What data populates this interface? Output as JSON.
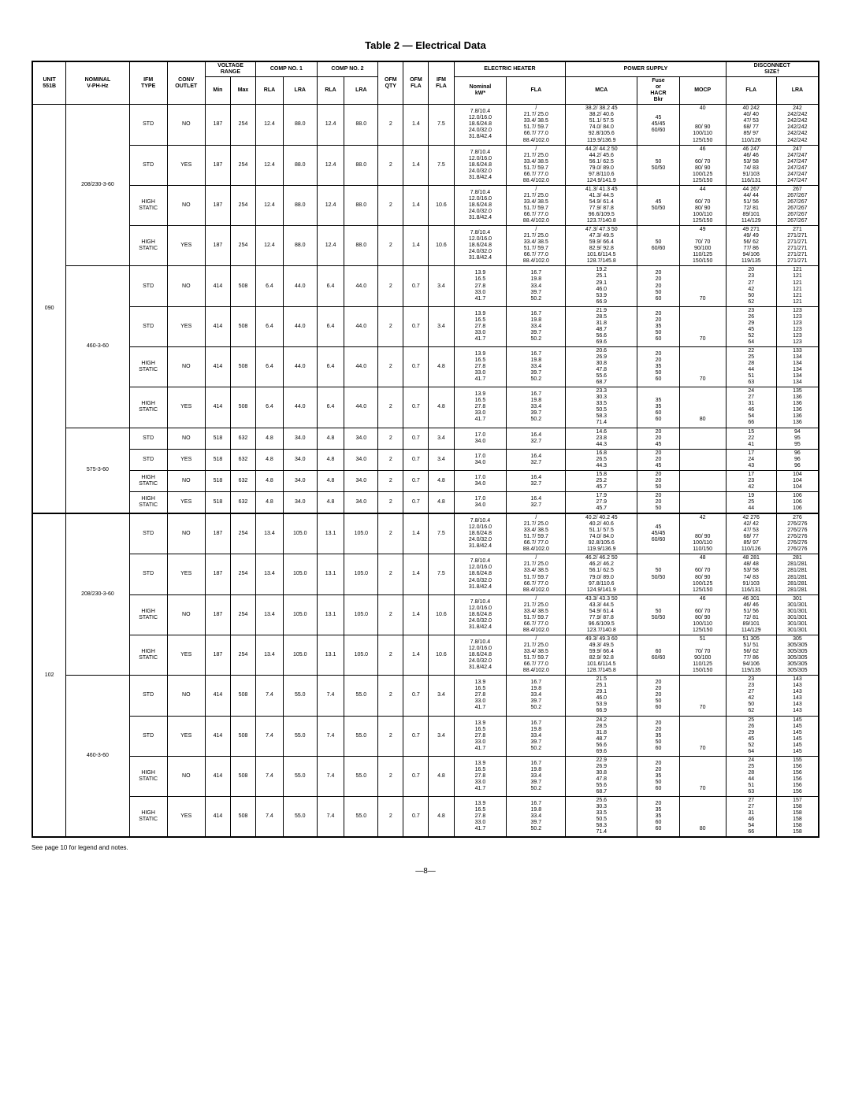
{
  "title": "Table 2 — Electrical Data",
  "footnote": "See page 10 for legend and notes.",
  "pagenum": "—8—",
  "header": {
    "unit": "UNIT\n551B",
    "nominal": "NOMINAL\nV-PH-Hz",
    "ifmtype": "IFM\nTYPE",
    "conv": "CONV\nOUTLET",
    "voltrange": "VOLTAGE\nRANGE",
    "min": "Min",
    "max": "Max",
    "comp1": "COMP NO. 1",
    "comp2": "COMP NO. 2",
    "rla": "RLA",
    "lra": "LRA",
    "ofmqty": "OFM\nQTY",
    "ofmfla": "OFM\nFLA",
    "ifmfla": "IFM\nFLA",
    "eheat": "ELECTRIC HEATER",
    "kw": "Nominal\nkW*",
    "fla": "FLA",
    "ps": "POWER SUPPLY",
    "mca": "MCA",
    "fuse": "Fuse\nor\nHACR\nBkr",
    "mocp": "MOCP",
    "disc": "DISCONNECT\nSIZE†",
    "dfla": "FLA",
    "dlra": "LRA"
  },
  "rows": [
    {
      "unit": "090",
      "volt": "208/230-3-60",
      "ifm": "STD",
      "conv": "NO",
      "min": "187",
      "max": "254",
      "r1": "12.4",
      "l1": "88.0",
      "r2": "12.4",
      "l2": "88.0",
      "qty": "2",
      "ofla": "1.4",
      "ifla": "7.5",
      "kw": "7.8/10.4\n12.0/16.0\n18.6/24.8\n24.0/32.0\n31.8/42.4",
      "fla": "/\n21.7/ 25.0\n33.4/ 38.5\n51.7/ 59.7\n66.7/ 77.0\n88.4/102.0",
      "mca": "38.2/ 38.2     45\n38.2/ 40.6\n51.1/ 57.5\n74.0/ 84.0\n92.8/105.6\n119.9/136.9",
      "fuse": "45\n45/45\n60/60",
      "mocp": "40\n\n\n80/ 90\n100/110\n125/150",
      "dfla": "40     242\n40/ 40\n47/ 53\n68/ 77\n85/ 97\n110/126",
      "dlra": "242\n242/242\n242/242\n242/242\n242/242\n242/242"
    },
    {
      "unit": "",
      "volt": "",
      "ifm": "STD",
      "conv": "YES",
      "min": "187",
      "max": "254",
      "r1": "12.4",
      "l1": "88.0",
      "r2": "12.4",
      "l2": "88.0",
      "qty": "2",
      "ofla": "1.4",
      "ifla": "7.5",
      "kw": "7.8/10.4\n12.0/16.0\n18.6/24.8\n24.0/32.0\n31.8/42.4",
      "fla": "/\n21.7/ 25.0\n33.4/ 38.5\n51.7/ 59.7\n66.7/ 77.0\n88.4/102.0",
      "mca": "44.2/ 44.2     50\n44.2/ 45.6\n56.1/ 62.5\n79.0/ 89.0\n97.8/110.6\n124.9/141.9",
      "fuse": "50\n50/50",
      "mocp": "46\n\n60/ 70\n80/ 90\n100/125\n125/150",
      "dfla": "46     247\n46/ 46\n53/ 58\n74/ 83\n91/103\n116/131",
      "dlra": "247\n247/247\n247/247\n247/247\n247/247\n247/247"
    },
    {
      "unit": "",
      "volt": "",
      "ifm": "HIGH\nSTATIC",
      "conv": "NO",
      "min": "187",
      "max": "254",
      "r1": "12.4",
      "l1": "88.0",
      "r2": "12.4",
      "l2": "88.0",
      "qty": "2",
      "ofla": "1.4",
      "ifla": "10.6",
      "kw": "7.8/10.4\n12.0/16.0\n18.6/24.8\n24.0/32.0\n31.8/42.4",
      "fla": "/\n21.7/ 25.0\n33.4/ 38.5\n51.7/ 59.7\n66.7/ 77.0\n88.4/102.0",
      "mca": "41.3/ 41.3     45\n41.3/ 44.5\n54.9/ 61.4\n77.9/ 87.8\n96.6/109.5\n123.7/140.8",
      "fuse": "45\n50/50",
      "mocp": "44\n\n60/ 70\n80/ 90\n100/110\n125/150",
      "dfla": "44     267\n44/ 44\n51/ 56\n72/ 81\n89/101\n114/129",
      "dlra": "267\n267/267\n267/267\n267/267\n267/267\n267/267"
    },
    {
      "unit": "",
      "volt": "",
      "ifm": "HIGH\nSTATIC",
      "conv": "YES",
      "min": "187",
      "max": "254",
      "r1": "12.4",
      "l1": "88.0",
      "r2": "12.4",
      "l2": "88.0",
      "qty": "2",
      "ofla": "1.4",
      "ifla": "10.6",
      "kw": "7.8/10.4\n12.0/16.0\n18.6/24.8\n24.0/32.0\n31.8/42.4",
      "fla": "/\n21.7/ 25.0\n33.4/ 38.5\n51.7/ 59.7\n66.7/ 77.0\n88.4/102.0",
      "mca": "47.3/ 47.3     50\n47.3/ 49.5\n59.9/ 66.4\n82.9/ 92.8\n101.6/114.5\n128.7/145.8",
      "fuse": "50\n60/60",
      "mocp": "49\n\n70/ 70\n90/100\n110/125\n150/150",
      "dfla": "49     271\n49/ 49\n56/ 62\n77/ 86\n94/106\n119/135",
      "dlra": "271\n271/271\n271/271\n271/271\n271/271\n271/271"
    },
    {
      "unit": "",
      "volt": "460-3-60",
      "ifm": "STD",
      "conv": "NO",
      "min": "414",
      "max": "508",
      "r1": "6.4",
      "l1": "44.0",
      "r2": "6.4",
      "l2": "44.0",
      "qty": "2",
      "ofla": "0.7",
      "ifla": "3.4",
      "kw": "13.9\n16.5\n27.8\n33.0\n41.7",
      "fla": "16.7\n19.8\n33.4\n39.7\n50.2",
      "mca": "19.2\n25.1\n29.1\n46.0\n53.9\n66.9",
      "fuse": "20\n20\n20\n50\n60",
      "mocp": "\n\n\n\n70",
      "dfla": "20\n23\n27\n42\n50\n62",
      "dlra": "121\n121\n121\n121\n121\n121"
    },
    {
      "unit": "",
      "volt": "",
      "ifm": "STD",
      "conv": "YES",
      "min": "414",
      "max": "508",
      "r1": "6.4",
      "l1": "44.0",
      "r2": "6.4",
      "l2": "44.0",
      "qty": "2",
      "ofla": "0.7",
      "ifla": "3.4",
      "kw": "13.9\n16.5\n27.8\n33.0\n41.7",
      "fla": "16.7\n19.8\n33.4\n39.7\n50.2",
      "mca": "21.9\n28.5\n31.8\n48.7\n56.6\n69.6",
      "fuse": "20\n20\n35\n50\n60",
      "mocp": "\n\n\n\n70",
      "dfla": "23\n26\n29\n45\n52\n64",
      "dlra": "123\n123\n123\n123\n123\n123"
    },
    {
      "unit": "",
      "volt": "",
      "ifm": "HIGH\nSTATIC",
      "conv": "NO",
      "min": "414",
      "max": "508",
      "r1": "6.4",
      "l1": "44.0",
      "r2": "6.4",
      "l2": "44.0",
      "qty": "2",
      "ofla": "0.7",
      "ifla": "4.8",
      "kw": "13.9\n16.5\n27.8\n33.0\n41.7",
      "fla": "16.7\n19.8\n33.4\n39.7\n50.2",
      "mca": "20.6\n26.9\n30.8\n47.8\n55.6\n68.7",
      "fuse": "20\n20\n35\n50\n60",
      "mocp": "\n\n\n\n70",
      "dfla": "22\n25\n28\n44\n51\n63",
      "dlra": "133\n134\n134\n134\n134\n134"
    },
    {
      "unit": "",
      "volt": "",
      "ifm": "HIGH\nSTATIC",
      "conv": "YES",
      "min": "414",
      "max": "508",
      "r1": "6.4",
      "l1": "44.0",
      "r2": "6.4",
      "l2": "44.0",
      "qty": "2",
      "ofla": "0.7",
      "ifla": "4.8",
      "kw": "13.9\n16.5\n27.8\n33.0\n41.7",
      "fla": "16.7\n19.8\n33.4\n39.7\n50.2",
      "mca": "23.3\n30.3\n33.5\n50.5\n58.3\n71.4",
      "fuse": "\n35\n35\n60\n60",
      "mocp": "\n\n\n\n80",
      "dfla": "24\n27\n31\n46\n54\n66",
      "dlra": "135\n136\n136\n136\n136\n136"
    },
    {
      "unit": "",
      "volt": "575-3-60",
      "ifm": "STD",
      "conv": "NO",
      "min": "518",
      "max": "632",
      "r1": "4.8",
      "l1": "34.0",
      "r2": "4.8",
      "l2": "34.0",
      "qty": "2",
      "ofla": "0.7",
      "ifla": "3.4",
      "kw": "17.0\n34.0",
      "fla": "16.4\n32.7",
      "mca": "14.6\n23.8\n44.3",
      "fuse": "20\n20\n45",
      "mocp": "",
      "dfla": "15\n22\n41",
      "dlra": "94\n95\n95"
    },
    {
      "unit": "",
      "volt": "",
      "ifm": "STD",
      "conv": "YES",
      "min": "518",
      "max": "632",
      "r1": "4.8",
      "l1": "34.0",
      "r2": "4.8",
      "l2": "34.0",
      "qty": "2",
      "ofla": "0.7",
      "ifla": "3.4",
      "kw": "17.0\n34.0",
      "fla": "16.4\n32.7",
      "mca": "16.8\n26.5\n44.3",
      "fuse": "20\n20\n45",
      "mocp": "",
      "dfla": "17\n24\n43",
      "dlra": "96\n96\n96"
    },
    {
      "unit": "",
      "volt": "",
      "ifm": "HIGH\nSTATIC",
      "conv": "NO",
      "min": "518",
      "max": "632",
      "r1": "4.8",
      "l1": "34.0",
      "r2": "4.8",
      "l2": "34.0",
      "qty": "2",
      "ofla": "0.7",
      "ifla": "4.8",
      "kw": "17.0\n34.0",
      "fla": "16.4\n32.7",
      "mca": "15.8\n25.2\n45.7",
      "fuse": "20\n20\n50",
      "mocp": "",
      "dfla": "17\n23\n42",
      "dlra": "104\n104\n104"
    },
    {
      "unit": "",
      "volt": "",
      "ifm": "HIGH\nSTATIC",
      "conv": "YES",
      "min": "518",
      "max": "632",
      "r1": "4.8",
      "l1": "34.0",
      "r2": "4.8",
      "l2": "34.0",
      "qty": "2",
      "ofla": "0.7",
      "ifla": "4.8",
      "kw": "17.0\n34.0",
      "fla": "16.4\n32.7",
      "mca": "17.9\n27.9\n45.7",
      "fuse": "20\n20\n50",
      "mocp": "",
      "dfla": "19\n25\n44",
      "dlra": "106\n106\n106"
    },
    {
      "unit": "102",
      "volt": "208/230-3-60",
      "ifm": "STD",
      "conv": "NO",
      "min": "187",
      "max": "254",
      "r1": "13.4",
      "l1": "105.0",
      "r2": "13.1",
      "l2": "105.0",
      "qty": "2",
      "ofla": "1.4",
      "ifla": "7.5",
      "kw": "7.8/10.4\n12.0/16.0\n18.6/24.8\n24.0/32.0\n31.8/42.4",
      "fla": "/\n21.7/ 25.0\n33.4/ 38.5\n51.7/ 59.7\n66.7/ 77.0\n88.4/102.0",
      "mca": "40.2/ 40.2     45\n40.2/ 40.6\n51.1/ 57.5\n74.0/ 84.0\n92.8/105.6\n119.9/136.9",
      "fuse": "45\n45/45\n60/60",
      "mocp": "42\n\n\n80/ 90\n100/110\n110/150",
      "dfla": "42     276\n42/ 42\n47/ 53\n68/ 77\n85/ 97\n110/126",
      "dlra": "276\n276/276\n276/276\n276/276\n276/276\n276/276"
    },
    {
      "unit": "",
      "volt": "",
      "ifm": "STD",
      "conv": "YES",
      "min": "187",
      "max": "254",
      "r1": "13.4",
      "l1": "105.0",
      "r2": "13.1",
      "l2": "105.0",
      "qty": "2",
      "ofla": "1.4",
      "ifla": "7.5",
      "kw": "7.8/10.4\n12.0/16.0\n18.6/24.8\n24.0/32.0\n31.8/42.4",
      "fla": "/\n21.7/ 25.0\n33.4/ 38.5\n51.7/ 59.7\n66.7/ 77.0\n88.4/102.0",
      "mca": "46.2/ 46.2     50\n46.2/ 46.2\n56.1/ 62.5\n79.0/ 89.0\n97.8/110.6\n124.9/141.9",
      "fuse": "50\n50/50",
      "mocp": "48\n\n60/ 70\n80/ 90\n100/125\n125/150",
      "dfla": "48     281\n48/ 48\n53/ 58\n74/ 83\n91/103\n116/131",
      "dlra": "281\n281/281\n281/281\n281/281\n281/281\n281/281"
    },
    {
      "unit": "",
      "volt": "",
      "ifm": "HIGH\nSTATIC",
      "conv": "NO",
      "min": "187",
      "max": "254",
      "r1": "13.4",
      "l1": "105.0",
      "r2": "13.1",
      "l2": "105.0",
      "qty": "2",
      "ofla": "1.4",
      "ifla": "10.6",
      "kw": "7.8/10.4\n12.0/16.0\n18.6/24.8\n24.0/32.0\n31.8/42.4",
      "fla": "/\n21.7/ 25.0\n33.4/ 38.5\n51.7/ 59.7\n66.7/ 77.0\n88.4/102.0",
      "mca": "43.3/ 43.3     50\n43.3/ 44.5\n54.9/ 61.4\n77.9/ 87.8\n96.6/109.5\n123.7/140.8",
      "fuse": "50\n50/50",
      "mocp": "46\n\n60/ 70\n80/ 90\n100/110\n125/150",
      "dfla": "46     301\n46/ 46\n51/ 56\n72/ 81\n89/101\n114/129",
      "dlra": "301\n301/301\n301/301\n301/301\n301/301\n301/301"
    },
    {
      "unit": "",
      "volt": "",
      "ifm": "HIGH\nSTATIC",
      "conv": "YES",
      "min": "187",
      "max": "254",
      "r1": "13.4",
      "l1": "105.0",
      "r2": "13.1",
      "l2": "105.0",
      "qty": "2",
      "ofla": "1.4",
      "ifla": "10.6",
      "kw": "7.8/10.4\n12.0/16.0\n18.6/24.8\n24.0/32.0\n31.8/42.4",
      "fla": "/\n21.7/ 25.0\n33.4/ 38.5\n51.7/ 59.7\n66.7/ 77.0\n88.4/102.0",
      "mca": "49.3/ 49.3     60\n49.3/ 49.5\n59.9/ 66.4\n82.9/ 92.8\n101.6/114.5\n128.7/145.8",
      "fuse": "60\n60/60",
      "mocp": "51\n\n70/ 70\n90/100\n110/125\n150/150",
      "dfla": "51     305\n51/ 51\n56/ 62\n77/ 86\n94/106\n119/135",
      "dlra": "305\n305/305\n305/305\n305/305\n305/305\n305/305"
    },
    {
      "unit": "",
      "volt": "460-3-60",
      "ifm": "STD",
      "conv": "NO",
      "min": "414",
      "max": "508",
      "r1": "7.4",
      "l1": "55.0",
      "r2": "7.4",
      "l2": "55.0",
      "qty": "2",
      "ofla": "0.7",
      "ifla": "3.4",
      "kw": "13.9\n16.5\n27.8\n33.0\n41.7",
      "fla": "16.7\n19.8\n33.4\n39.7\n50.2",
      "mca": "21.5\n25.1\n29.1\n46.0\n53.9\n66.9",
      "fuse": "20\n20\n20\n50\n60",
      "mocp": "\n\n\n\n70",
      "dfla": "23\n23\n27\n42\n50\n62",
      "dlra": "143\n143\n143\n143\n143\n143"
    },
    {
      "unit": "",
      "volt": "",
      "ifm": "STD",
      "conv": "YES",
      "min": "414",
      "max": "508",
      "r1": "7.4",
      "l1": "55.0",
      "r2": "7.4",
      "l2": "55.0",
      "qty": "2",
      "ofla": "0.7",
      "ifla": "3.4",
      "kw": "13.9\n16.5\n27.8\n33.0\n41.7",
      "fla": "16.7\n19.8\n33.4\n39.7\n50.2",
      "mca": "24.2\n28.5\n31.8\n48.7\n56.6\n69.6",
      "fuse": "20\n20\n35\n50\n60",
      "mocp": "\n\n\n\n70",
      "dfla": "25\n26\n29\n45\n52\n64",
      "dlra": "145\n145\n145\n145\n145\n145"
    },
    {
      "unit": "",
      "volt": "",
      "ifm": "HIGH\nSTATIC",
      "conv": "NO",
      "min": "414",
      "max": "508",
      "r1": "7.4",
      "l1": "55.0",
      "r2": "7.4",
      "l2": "55.0",
      "qty": "2",
      "ofla": "0.7",
      "ifla": "4.8",
      "kw": "13.9\n16.5\n27.8\n33.0\n41.7",
      "fla": "16.7\n19.8\n33.4\n39.7\n50.2",
      "mca": "22.9\n26.9\n30.8\n47.8\n55.6\n68.7",
      "fuse": "20\n20\n35\n50\n60",
      "mocp": "\n\n\n\n70",
      "dfla": "24\n25\n28\n44\n51\n63",
      "dlra": "155\n156\n156\n156\n156\n156"
    },
    {
      "unit": "",
      "volt": "",
      "ifm": "HIGH\nSTATIC",
      "conv": "YES",
      "min": "414",
      "max": "508",
      "r1": "7.4",
      "l1": "55.0",
      "r2": "7.4",
      "l2": "55.0",
      "qty": "2",
      "ofla": "0.7",
      "ifla": "4.8",
      "kw": "13.9\n16.5\n27.8\n33.0\n41.7",
      "fla": "16.7\n19.8\n33.4\n39.7\n50.2",
      "mca": "25.6\n30.3\n33.5\n50.5\n58.3\n71.4",
      "fuse": "20\n35\n35\n60\n60",
      "mocp": "\n\n\n\n80",
      "dfla": "27\n27\n31\n46\n54\n66",
      "dlra": "157\n158\n158\n158\n158\n158"
    }
  ],
  "spans": {
    "unit090": 12,
    "unit102": 8,
    "v090a": 4,
    "v090b": 4,
    "v090c": 4,
    "v102a": 4,
    "v102b": 4
  }
}
